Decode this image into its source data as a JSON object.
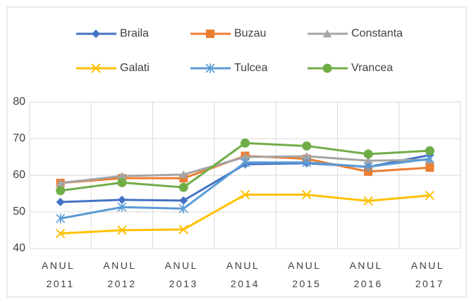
{
  "chart_data": {
    "type": "line",
    "categories": [
      "ANUL 2011",
      "ANUL 2012",
      "ANUL 2013",
      "ANUL 2014",
      "ANUL 2015",
      "ANUL 2016",
      "ANUL 2017"
    ],
    "series": [
      {
        "name": "Braila",
        "color": "#4472c4",
        "marker": "diamond",
        "values": [
          52.7,
          53.3,
          53.1,
          63.0,
          63.3,
          62.3,
          65.5
        ]
      },
      {
        "name": "Buzau",
        "color": "#ed7d31",
        "marker": "square",
        "values": [
          57.9,
          59.2,
          59.2,
          65.3,
          64.5,
          61.0,
          62.1
        ]
      },
      {
        "name": "Constanta",
        "color": "#a5a5a5",
        "marker": "triangle",
        "values": [
          57.9,
          59.8,
          60.2,
          65.0,
          65.2,
          64.0,
          64.2
        ]
      },
      {
        "name": "Galati",
        "color": "#ffc000",
        "marker": "x",
        "values": [
          44.1,
          45.0,
          45.2,
          54.7,
          54.7,
          53.0,
          54.5
        ]
      },
      {
        "name": "Tulcea",
        "color": "#5b9bd5",
        "marker": "star",
        "values": [
          48.2,
          51.3,
          50.9,
          63.5,
          63.5,
          62.3,
          64.5
        ]
      },
      {
        "name": "Vrancea",
        "color": "#70ad47",
        "marker": "circle",
        "values": [
          55.8,
          58.0,
          56.7,
          68.8,
          68.0,
          65.8,
          66.7
        ]
      }
    ],
    "ylim": [
      40,
      80
    ],
    "yticks": [
      40,
      50,
      60,
      70,
      80
    ],
    "grid": true,
    "legend": "top"
  }
}
